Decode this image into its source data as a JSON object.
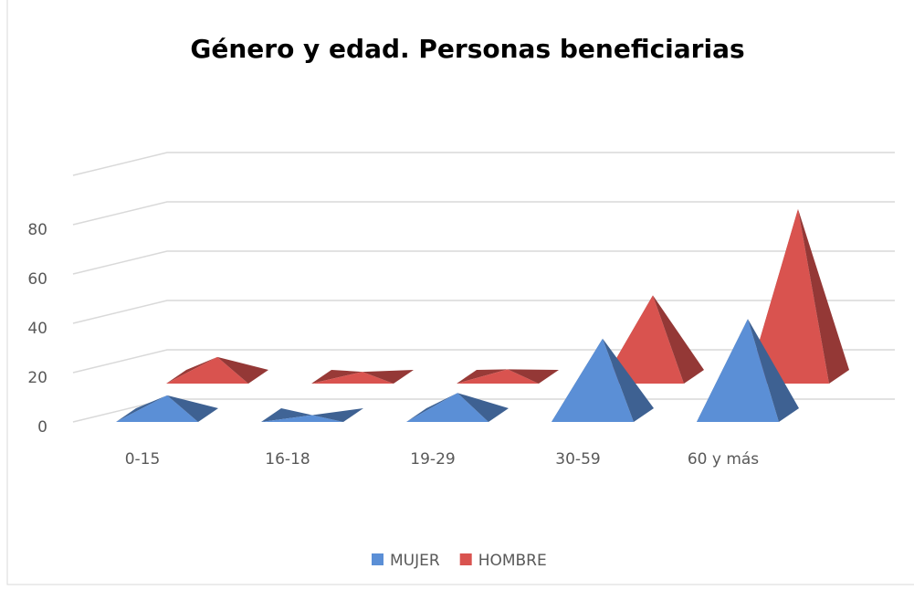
{
  "chart_data": {
    "type": "pyramid3d",
    "title": "Género y edad. Personas beneficiarias",
    "categories": [
      "0-15",
      "16-18",
      "19-29",
      "30-59",
      "60 y más"
    ],
    "series": [
      {
        "name": "MUJER",
        "color": "#5b8fd6",
        "values": [
          8,
          0,
          9,
          31,
          39
        ]
      },
      {
        "name": "HOMBRE",
        "color": "#d9534f",
        "values": [
          8,
          2,
          3,
          33,
          68
        ]
      }
    ],
    "ylim": [
      0,
      100
    ],
    "yticks": [
      0,
      20,
      40,
      60,
      80
    ],
    "grid": true,
    "legend": "bottom"
  }
}
